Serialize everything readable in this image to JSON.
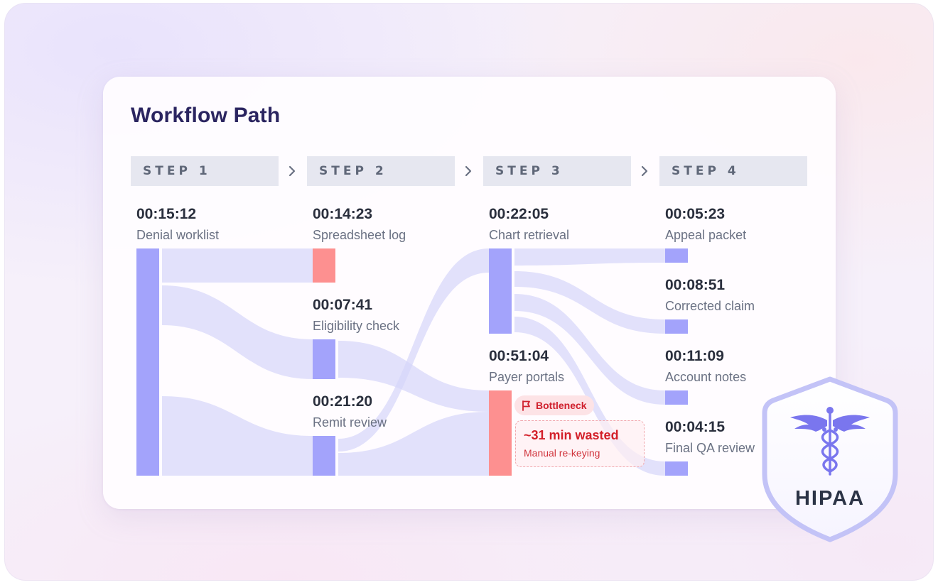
{
  "title": "Workflow Path",
  "steps": [
    {
      "label": "STEP 1"
    },
    {
      "label": "STEP 2"
    },
    {
      "label": "STEP 3"
    },
    {
      "label": "STEP 4"
    }
  ],
  "nodes": {
    "denial_worklist": {
      "time": "00:15:12",
      "label": "Denial worklist"
    },
    "spreadsheet_log": {
      "time": "00:14:23",
      "label": "Spreadsheet log"
    },
    "eligibility_check": {
      "time": "00:07:41",
      "label": "Eligibility check"
    },
    "remit_review": {
      "time": "00:21:20",
      "label": "Remit review"
    },
    "chart_retrieval": {
      "time": "00:22:05",
      "label": "Chart retrieval"
    },
    "payer_portals": {
      "time": "00:51:04",
      "label": "Payer portals"
    },
    "appeal_packet": {
      "time": "00:05:23",
      "label": "Appeal packet"
    },
    "corrected_claim": {
      "time": "00:08:51",
      "label": "Corrected claim"
    },
    "account_notes": {
      "time": "00:11:09",
      "label": "Account notes"
    },
    "final_qa_review": {
      "time": "00:04:15",
      "label": "Final QA review"
    }
  },
  "bottleneck": {
    "badge": "Bottleneck",
    "title": "~31 min wasted",
    "subtitle": "Manual re-keying"
  },
  "badge_hipaa": "HIPAA",
  "colors": {
    "node": "#a3a3fb",
    "bottleneck": "#fd9090",
    "flow": "#d8d8fa",
    "title": "#2b2560",
    "alert": "#d3202a"
  },
  "icons": [
    "chevron-right-icon",
    "flag-icon",
    "caduceus-icon",
    "shield-icon"
  ]
}
